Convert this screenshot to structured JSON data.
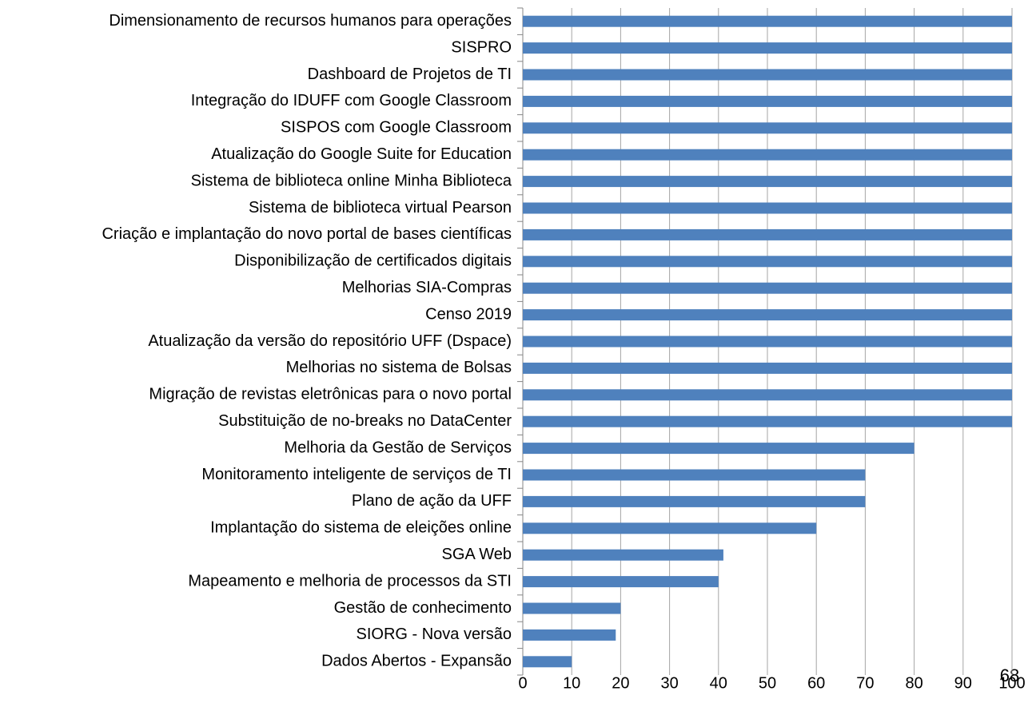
{
  "chart_data": {
    "type": "hbar",
    "categories": [
      "Dimensionamento de recursos humanos para operações",
      "SISPRO",
      "Dashboard de Projetos de TI",
      "Integração do IDUFF com Google Classroom",
      "SISPOS com Google Classroom",
      "Atualização do Google Suite for Education",
      "Sistema de biblioteca online Minha Biblioteca",
      "Sistema de biblioteca virtual Pearson",
      "Criação e implantação do novo portal de bases científicas",
      "Disponibilização de certificados digitais",
      "Melhorias SIA-Compras",
      "Censo 2019",
      "Atualização da versão do repositório UFF (Dspace)",
      "Melhorias no sistema de Bolsas",
      "Migração de revistas eletrônicas para o novo portal",
      "Substituição de no-breaks no DataCenter",
      "Melhoria da Gestão de Serviços",
      "Monitoramento inteligente de serviços de TI",
      "Plano de ação da UFF",
      "Implantação do sistema de eleições online",
      "SGA Web",
      "Mapeamento e melhoria de processos da STI",
      "Gestão de conhecimento",
      "SIORG - Nova versão",
      "Dados Abertos - Expansão"
    ],
    "values": [
      100,
      100,
      100,
      100,
      100,
      100,
      100,
      100,
      100,
      100,
      100,
      100,
      100,
      100,
      100,
      100,
      80,
      70,
      70,
      60,
      41,
      40,
      20,
      19,
      10
    ],
    "color": "#4f81bd",
    "xlim": [
      0,
      100
    ],
    "xticks": [
      0,
      10,
      20,
      30,
      40,
      50,
      60,
      70,
      80,
      90,
      100
    ],
    "grid": true,
    "annotation": "68"
  }
}
